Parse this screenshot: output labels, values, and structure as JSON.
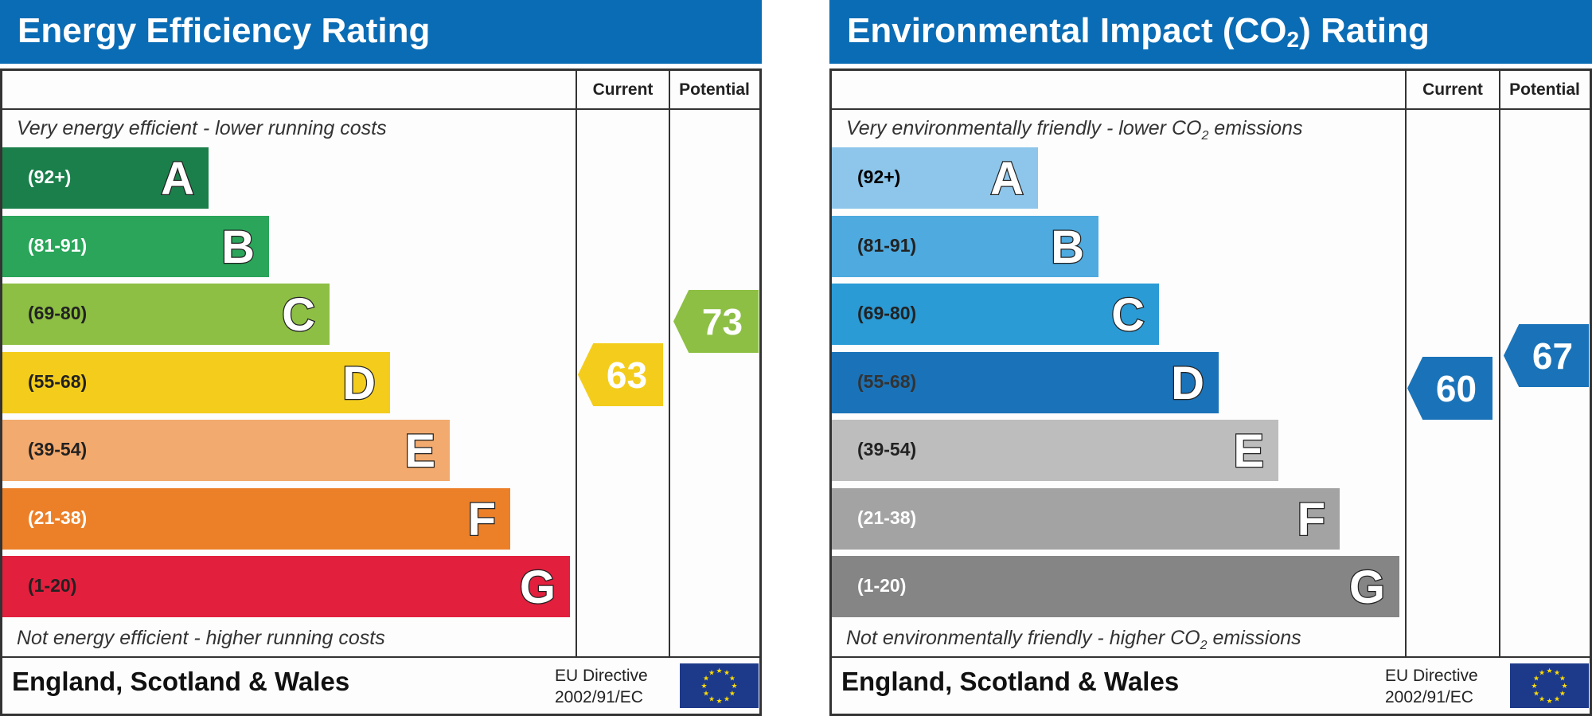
{
  "colors": {
    "header": "#0a6cb4"
  },
  "panels": [
    {
      "title": "Energy Efficiency Rating",
      "title_sub": "",
      "title_after": "",
      "col_current": "Current",
      "col_potential": "Potential",
      "top_note": "Very energy efficient - lower running costs",
      "top_note_sub": "",
      "top_note_after": "",
      "bottom_note": "Not energy efficient - higher running costs",
      "bottom_note_sub": "",
      "bottom_note_after": "",
      "bands": [
        {
          "letter": "A",
          "range": "(92+)",
          "color": "#1a7f4a",
          "text": "#fff"
        },
        {
          "letter": "B",
          "range": "(81-91)",
          "color": "#2aa55a",
          "text": "#fff"
        },
        {
          "letter": "C",
          "range": "(69-80)",
          "color": "#8dbf44",
          "text": "#222"
        },
        {
          "letter": "D",
          "range": "(55-68)",
          "color": "#f4cd1c",
          "text": "#222"
        },
        {
          "letter": "E",
          "range": "(39-54)",
          "color": "#f2aa6e",
          "text": "#222"
        },
        {
          "letter": "F",
          "range": "(21-38)",
          "color": "#ec8029",
          "text": "#fff"
        },
        {
          "letter": "G",
          "range": "(1-20)",
          "color": "#e21f3d",
          "text": "#222"
        }
      ],
      "current": {
        "value": "63",
        "color": "#f4cd1c"
      },
      "potential": {
        "value": "73",
        "color": "#8dbf44"
      },
      "footer": "England, Scotland & Wales",
      "eu_line1": "EU Directive",
      "eu_line2": "2002/91/EC"
    },
    {
      "title": "Environmental Impact (CO",
      "title_sub": "2",
      "title_after": ") Rating",
      "col_current": "Current",
      "col_potential": "Potential",
      "top_note": "Very environmentally friendly - lower CO",
      "top_note_sub": "2",
      "top_note_after": " emissions",
      "bottom_note": "Not environmentally friendly - higher CO",
      "bottom_note_sub": "2",
      "bottom_note_after": " emissions",
      "bands": [
        {
          "letter": "A",
          "range": "(92+)",
          "color": "#8dc6ea",
          "text": "#000"
        },
        {
          "letter": "B",
          "range": "(81-91)",
          "color": "#4eaadf",
          "text": "#222"
        },
        {
          "letter": "C",
          "range": "(69-80)",
          "color": "#2a9bd5",
          "text": "#222"
        },
        {
          "letter": "D",
          "range": "(55-68)",
          "color": "#1a73b9",
          "text": "#333"
        },
        {
          "letter": "E",
          "range": "(39-54)",
          "color": "#bdbdbd",
          "text": "#222"
        },
        {
          "letter": "F",
          "range": "(21-38)",
          "color": "#a3a3a3",
          "text": "#fff"
        },
        {
          "letter": "G",
          "range": "(1-20)",
          "color": "#858585",
          "text": "#fff"
        }
      ],
      "current": {
        "value": "60",
        "color": "#1a73b9"
      },
      "potential": {
        "value": "67",
        "color": "#1a73b9"
      },
      "footer": "England, Scotland & Wales",
      "eu_line1": "EU Directive",
      "eu_line2": "2002/91/EC"
    }
  ]
}
